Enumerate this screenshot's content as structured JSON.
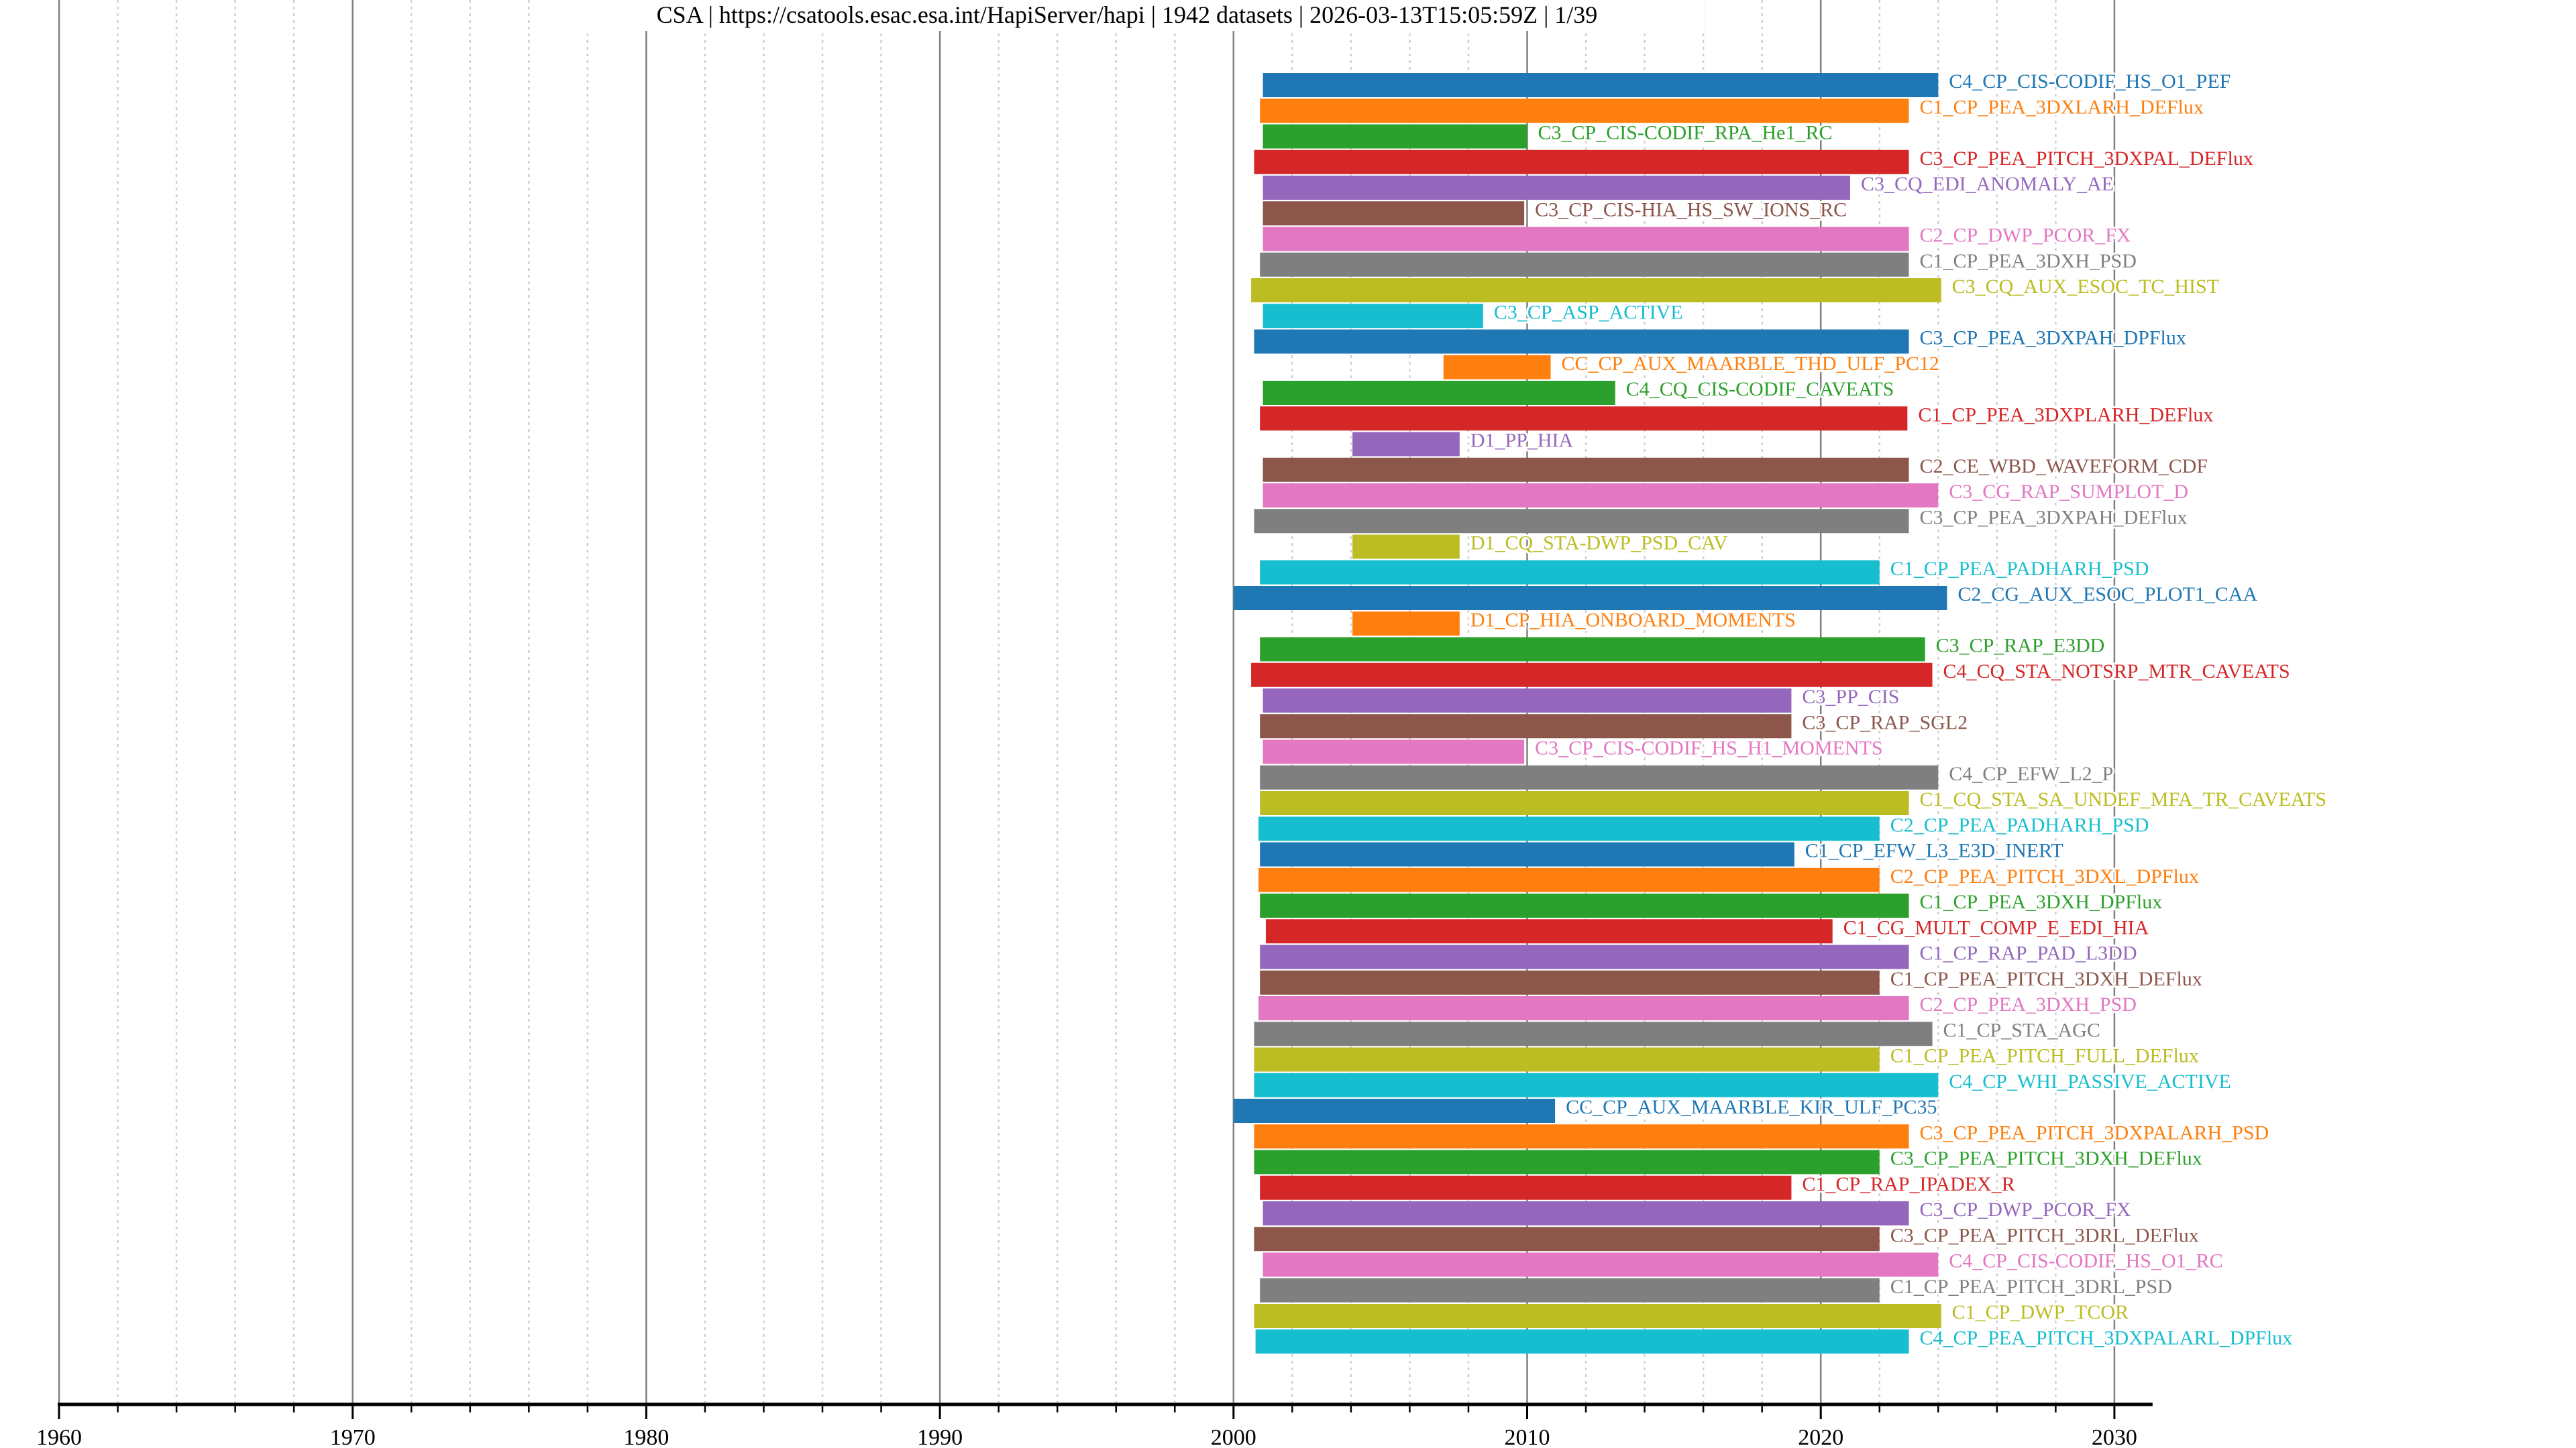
{
  "title": "CSA | https://csatools.esac.esa.int/HapiServer/hapi | 1942 datasets | 2026-03-13T15:05:59Z | 1/39",
  "chart_data": {
    "type": "bar",
    "orientation": "horizontal-timeline",
    "title": "CSA | https://csatools.esac.esa.int/HapiServer/hapi | 1942 datasets | 2026-03-13T15:05:59Z | 1/39",
    "xlabel": "",
    "ylabel": "",
    "xlim": [
      1960,
      2031.3
    ],
    "x_ticks": [
      1960,
      1970,
      1980,
      1990,
      2000,
      2010,
      2020,
      2030
    ],
    "x_tick_labels": [
      "1960",
      "1970",
      "1980",
      "1990",
      "2000",
      "2010",
      "2020",
      "2030"
    ],
    "minor_tick_step_years": 2,
    "grid": true,
    "palette": [
      "#1f77b4",
      "#ff7f0e",
      "#2ca02c",
      "#d62728",
      "#9467bd",
      "#8c564b",
      "#e377c2",
      "#7f7f7f",
      "#bcbd22",
      "#17becf"
    ],
    "series": [
      {
        "name": "C4_CP_CIS-CODIF_HS_O1_PEF",
        "start": 2001.0,
        "end": 2024.0
      },
      {
        "name": "C1_CP_PEA_3DXLARH_DEFlux",
        "start": 2000.9,
        "end": 2023.0
      },
      {
        "name": "C3_CP_CIS-CODIF_RPA_He1_RC",
        "start": 2001.0,
        "end": 2010.0
      },
      {
        "name": "C3_CP_PEA_PITCH_3DXPAL_DEFlux",
        "start": 2000.7,
        "end": 2023.0
      },
      {
        "name": "C3_CQ_EDI_ANOMALY_AE",
        "start": 2001.0,
        "end": 2021.0
      },
      {
        "name": "C3_CP_CIS-HIA_HS_SW_IONS_RC",
        "start": 2001.0,
        "end": 2009.9
      },
      {
        "name": "C2_CP_DWP_PCOR_FX",
        "start": 2001.0,
        "end": 2023.0
      },
      {
        "name": "C1_CP_PEA_3DXH_PSD",
        "start": 2000.9,
        "end": 2023.0
      },
      {
        "name": "C3_CQ_AUX_ESOC_TC_HIST",
        "start": 2000.6,
        "end": 2024.1
      },
      {
        "name": "C3_CP_ASP_ACTIVE",
        "start": 2001.0,
        "end": 2008.5
      },
      {
        "name": "C3_CP_PEA_3DXPAH_DPFlux",
        "start": 2000.7,
        "end": 2023.0
      },
      {
        "name": "CC_CP_AUX_MAARBLE_THD_ULF_PC12",
        "start": 2007.15,
        "end": 2010.8
      },
      {
        "name": "C4_CQ_CIS-CODIF_CAVEATS",
        "start": 2001.0,
        "end": 2013.0
      },
      {
        "name": "C1_CP_PEA_3DXPLARH_DEFlux",
        "start": 2000.9,
        "end": 2022.95
      },
      {
        "name": "D1_PP_HIA",
        "start": 2004.05,
        "end": 2007.7
      },
      {
        "name": "C2_CE_WBD_WAVEFORM_CDF",
        "start": 2001.0,
        "end": 2023.0
      },
      {
        "name": "C3_CG_RAP_SUMPLOT_D",
        "start": 2001.0,
        "end": 2024.0
      },
      {
        "name": "C3_CP_PEA_3DXPAH_DEFlux",
        "start": 2000.7,
        "end": 2023.0
      },
      {
        "name": "D1_CQ_STA-DWP_PSD_CAV",
        "start": 2004.05,
        "end": 2007.7
      },
      {
        "name": "C1_CP_PEA_PADHARH_PSD",
        "start": 2000.9,
        "end": 2022.0
      },
      {
        "name": "C2_CG_AUX_ESOC_PLOT1_CAA",
        "start": 2000.0,
        "end": 2024.3
      },
      {
        "name": "D1_CP_HIA_ONBOARD_MOMENTS",
        "start": 2004.05,
        "end": 2007.7
      },
      {
        "name": "C3_CP_RAP_E3DD",
        "start": 2000.9,
        "end": 2023.55
      },
      {
        "name": "C4_CQ_STA_NOTSRP_MTR_CAVEATS",
        "start": 2000.6,
        "end": 2023.8
      },
      {
        "name": "C3_PP_CIS",
        "start": 2001.0,
        "end": 2019.0
      },
      {
        "name": "C3_CP_RAP_SGL2",
        "start": 2000.9,
        "end": 2019.0
      },
      {
        "name": "C3_CP_CIS-CODIF_HS_H1_MOMENTS",
        "start": 2001.0,
        "end": 2009.9
      },
      {
        "name": "C4_CP_EFW_L2_P",
        "start": 2000.9,
        "end": 2024.0
      },
      {
        "name": "C1_CQ_STA_SA_UNDEF_MFA_TR_CAVEATS",
        "start": 2000.9,
        "end": 2023.0
      },
      {
        "name": "C2_CP_PEA_PADHARH_PSD",
        "start": 2000.85,
        "end": 2022.0
      },
      {
        "name": "C1_CP_EFW_L3_E3D_INERT",
        "start": 2000.9,
        "end": 2019.1
      },
      {
        "name": "C2_CP_PEA_PITCH_3DXL_DPFlux",
        "start": 2000.85,
        "end": 2022.0
      },
      {
        "name": "C1_CP_PEA_3DXH_DPFlux",
        "start": 2000.9,
        "end": 2023.0
      },
      {
        "name": "C1_CG_MULT_COMP_E_EDI_HIA",
        "start": 2001.1,
        "end": 2020.4
      },
      {
        "name": "C1_CP_RAP_PAD_L3DD",
        "start": 2000.9,
        "end": 2023.0
      },
      {
        "name": "C1_CP_PEA_PITCH_3DXH_DEFlux",
        "start": 2000.9,
        "end": 2022.0
      },
      {
        "name": "C2_CP_PEA_3DXH_PSD",
        "start": 2000.85,
        "end": 2023.0
      },
      {
        "name": "C1_CP_STA_AGC",
        "start": 2000.7,
        "end": 2023.8
      },
      {
        "name": "C1_CP_PEA_PITCH_FULL_DEFlux",
        "start": 2000.7,
        "end": 2022.0
      },
      {
        "name": "C4_CP_WHI_PASSIVE_ACTIVE",
        "start": 2000.7,
        "end": 2024.0
      },
      {
        "name": "CC_CP_AUX_MAARBLE_KIR_ULF_PC35",
        "start": 2000.0,
        "end": 2010.95
      },
      {
        "name": "C3_CP_PEA_PITCH_3DXPALARH_PSD",
        "start": 2000.7,
        "end": 2023.0
      },
      {
        "name": "C3_CP_PEA_PITCH_3DXH_DEFlux",
        "start": 2000.7,
        "end": 2022.0
      },
      {
        "name": "C1_CP_RAP_IPADEX_R",
        "start": 2000.9,
        "end": 2019.0
      },
      {
        "name": "C3_CP_DWP_PCOR_FX",
        "start": 2001.0,
        "end": 2023.0
      },
      {
        "name": "C3_CP_PEA_PITCH_3DRL_DEFlux",
        "start": 2000.7,
        "end": 2022.0
      },
      {
        "name": "C4_CP_CIS-CODIF_HS_O1_RC",
        "start": 2001.0,
        "end": 2024.0
      },
      {
        "name": "C1_CP_PEA_PITCH_3DRL_PSD",
        "start": 2000.9,
        "end": 2022.0
      },
      {
        "name": "C1_CP_DWP_TCOR",
        "start": 2000.7,
        "end": 2024.1
      },
      {
        "name": "C4_CP_PEA_PITCH_3DXPALARL_DPFlux",
        "start": 2000.75,
        "end": 2023.0
      }
    ]
  }
}
